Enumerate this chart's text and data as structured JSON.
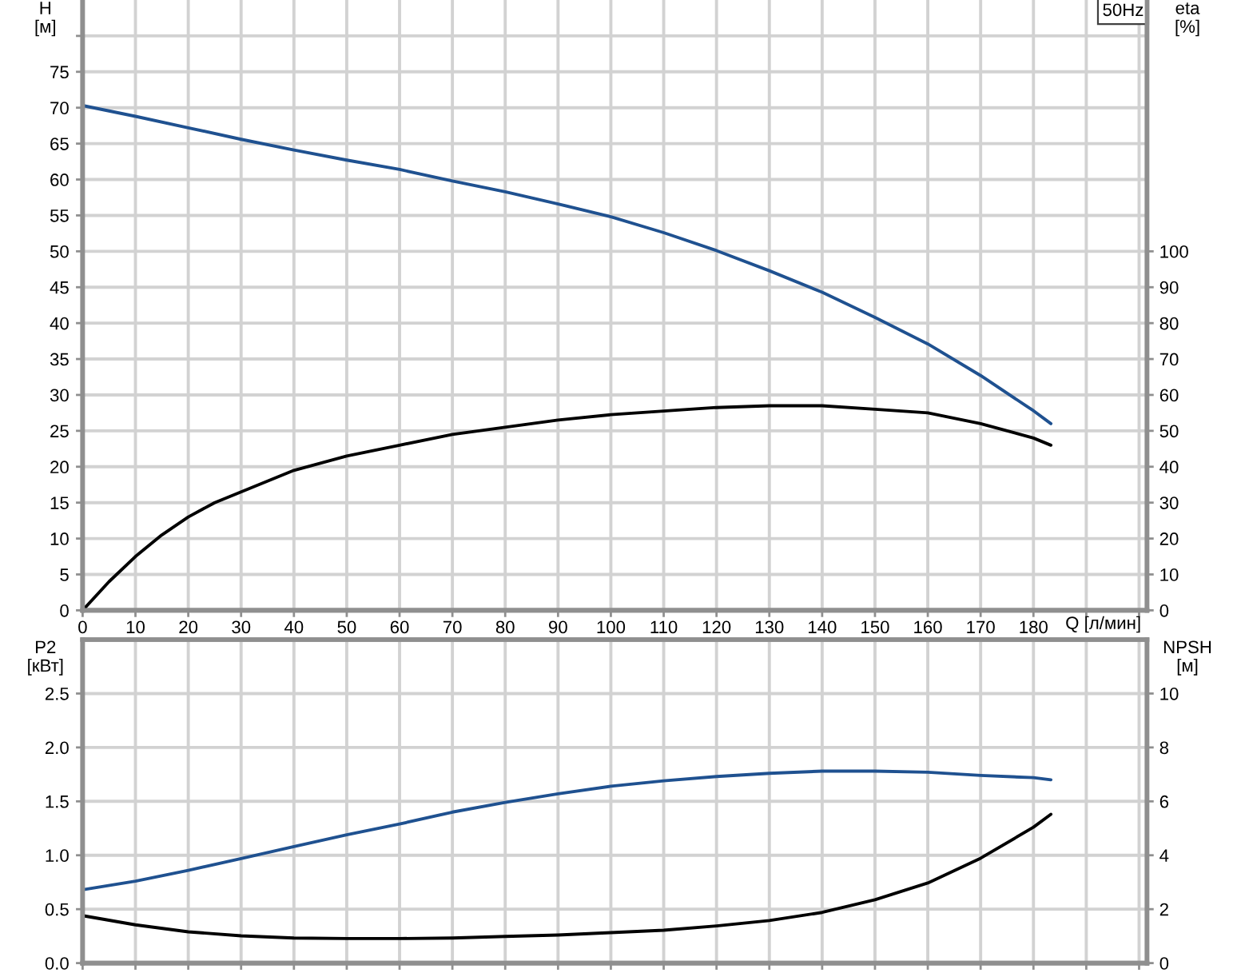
{
  "chart_data": [
    {
      "type": "line",
      "title": "50Hz",
      "xlabel": "Q [л/мин]",
      "ylabel": "H\n[м]",
      "y2label": "eta\n[%]",
      "xlim": [
        0,
        201.5
      ],
      "xticks": [
        0,
        10,
        20,
        30,
        40,
        50,
        60,
        70,
        80,
        90,
        100,
        110,
        120,
        130,
        140,
        150,
        160,
        170,
        180,
        {
          "value": 190,
          "label": null
        },
        {
          "value": 200,
          "label": null
        }
      ],
      "ylim": [
        0,
        85
      ],
      "yticks": [
        0,
        5,
        10,
        15,
        20,
        25,
        30,
        35,
        40,
        45,
        50,
        55,
        60,
        65,
        70,
        75,
        {
          "value": 80,
          "label": null
        }
      ],
      "y2lim": [
        0,
        170
      ],
      "y2ticks": [
        0,
        10,
        20,
        30,
        40,
        50,
        60,
        70,
        80,
        90,
        100
      ],
      "grid": true,
      "series": [
        {
          "color": "#1f5190",
          "x": [
            0,
            10,
            20,
            30,
            40,
            50,
            60,
            70,
            80,
            90,
            100,
            110,
            120,
            130,
            140,
            150,
            160,
            170,
            180,
            183.3
          ],
          "values": [
            70.3,
            68.8,
            67.2,
            65.6,
            64.1,
            62.7,
            61.4,
            59.8,
            58.3,
            56.6,
            54.8,
            52.6,
            50.1,
            47.3,
            44.3,
            40.8,
            37.1,
            32.7,
            27.8,
            26.0
          ]
        },
        {
          "color": "#000000",
          "axis": "y2",
          "x": [
            0,
            5,
            10,
            15,
            20,
            25,
            30,
            40,
            50,
            60,
            70,
            80,
            90,
            100,
            110,
            120,
            130,
            140,
            150,
            160,
            170,
            180,
            183.3
          ],
          "values": [
            0,
            8,
            15,
            21,
            26,
            30,
            33,
            39,
            43,
            46,
            49,
            51,
            53,
            54.5,
            55.5,
            56.5,
            57,
            57,
            56,
            55,
            52,
            48,
            46
          ]
        }
      ]
    },
    {
      "type": "line",
      "ylabel": "P2\n[кВт]",
      "y2label": "NPSH\n[м]",
      "xlim": [
        0,
        201.5
      ],
      "xticks": [
        0,
        10,
        20,
        30,
        40,
        50,
        60,
        70,
        80,
        90,
        100,
        110,
        120,
        130,
        140,
        150,
        160,
        170,
        180,
        190,
        200
      ],
      "ylim": [
        0,
        3.0
      ],
      "yticks": [
        {
          "value": 0,
          "label": "0.0"
        },
        0.5,
        {
          "value": 1,
          "label": "1.0"
        },
        1.5,
        {
          "value": 2,
          "label": "2.0"
        },
        2.5
      ],
      "y2lim": [
        0,
        12
      ],
      "y2ticks": [
        0,
        2,
        4,
        6,
        8,
        10
      ],
      "tick_labels": "y",
      "grid": true,
      "series": [
        {
          "color": "#1f5190",
          "x": [
            0,
            10,
            20,
            30,
            40,
            50,
            60,
            70,
            80,
            90,
            100,
            110,
            120,
            130,
            140,
            150,
            160,
            170,
            180,
            183.3
          ],
          "values": [
            0.68,
            0.76,
            0.86,
            0.97,
            1.08,
            1.19,
            1.29,
            1.4,
            1.49,
            1.57,
            1.64,
            1.69,
            1.73,
            1.76,
            1.78,
            1.78,
            1.77,
            1.74,
            1.72,
            1.7
          ]
        },
        {
          "color": "#000000",
          "axis": "y2",
          "x": [
            0,
            10,
            20,
            30,
            40,
            50,
            60,
            70,
            80,
            90,
            100,
            110,
            120,
            130,
            140,
            150,
            160,
            170,
            180,
            183.3
          ],
          "values": [
            1.76,
            1.42,
            1.16,
            1.01,
            0.93,
            0.91,
            0.91,
            0.93,
            0.99,
            1.04,
            1.13,
            1.22,
            1.38,
            1.58,
            1.88,
            2.35,
            2.97,
            3.89,
            5.04,
            5.52
          ]
        }
      ]
    }
  ]
}
